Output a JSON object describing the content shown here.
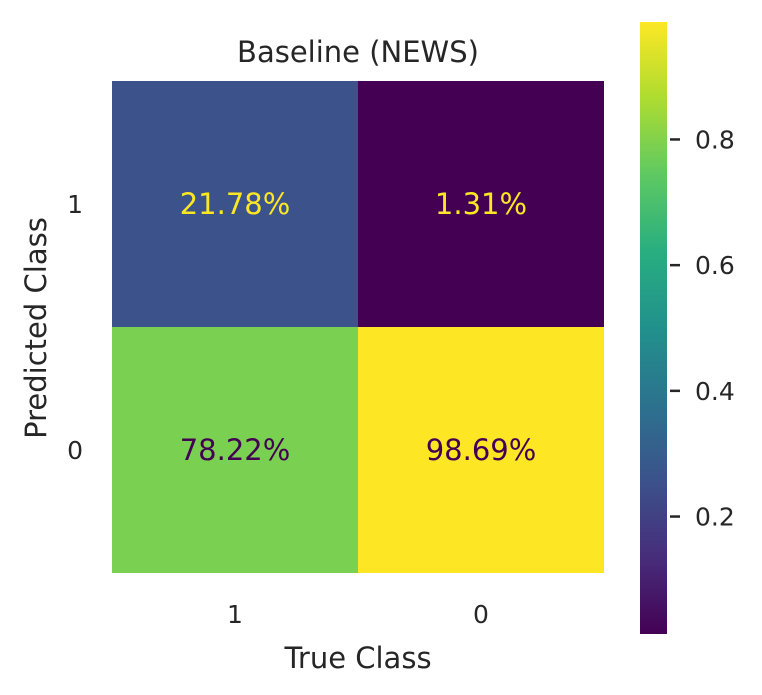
{
  "chart_data": {
    "type": "heatmap",
    "title": "Baseline (NEWS)",
    "xlabel": "True Class",
    "ylabel": "Predicted Class",
    "x_categories": [
      "1",
      "0"
    ],
    "y_categories": [
      "1",
      "0"
    ],
    "cells": [
      {
        "row": 0,
        "col": 0,
        "value": 0.2178,
        "label": "21.78%",
        "color": "#3b528b",
        "text_color": "#fde725"
      },
      {
        "row": 0,
        "col": 1,
        "value": 0.0131,
        "label": "1.31%",
        "color": "#440154",
        "text_color": "#fde725"
      },
      {
        "row": 1,
        "col": 0,
        "value": 0.7822,
        "label": "78.22%",
        "color": "#7ad151",
        "text_color": "#440154"
      },
      {
        "row": 1,
        "col": 1,
        "value": 0.9869,
        "label": "98.69%",
        "color": "#fde725",
        "text_color": "#440154"
      }
    ],
    "colorbar": {
      "colormap": "viridis",
      "range": [
        0.0131,
        0.9869
      ],
      "ticks": [
        0.2,
        0.4,
        0.6,
        0.8
      ],
      "tick_labels": [
        "0.2",
        "0.4",
        "0.6",
        "0.8"
      ]
    },
    "grid": false
  }
}
